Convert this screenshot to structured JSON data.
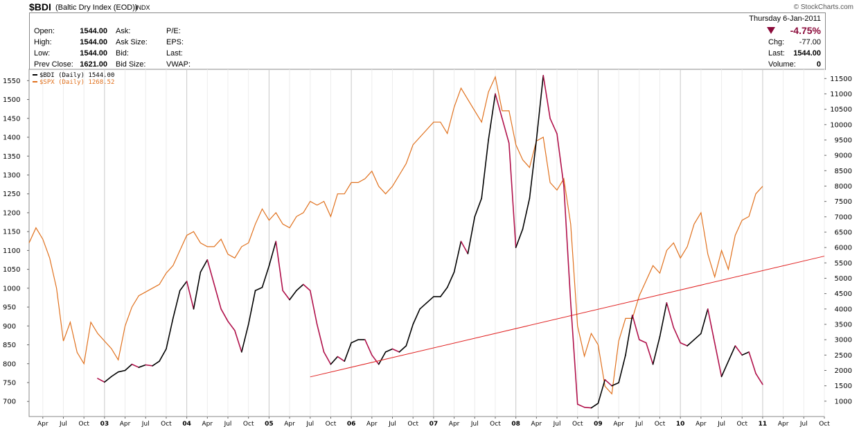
{
  "header": {
    "symbol": "$BDI",
    "name": "(Baltic Dry Index (EOD))",
    "exchange": "INDX",
    "watermark": "© StockCharts.com",
    "date": "Thursday  6-Jan-2011"
  },
  "stats": {
    "open_label": "Open:",
    "open_value": "1544.00",
    "high_label": "High:",
    "high_value": "1544.00",
    "low_label": "Low:",
    "low_value": "1544.00",
    "prev_close_label": "Prev Close:",
    "prev_close_value": "1621.00",
    "ask_label": "Ask:",
    "ask_size_label": "Ask Size:",
    "bid_label": "Bid:",
    "bid_size_label": "Bid Size:",
    "pe_label": "P/E:",
    "eps_label": "EPS:",
    "last_label_mid": "Last:",
    "vwap_label": "VWAP:",
    "change_pct": "-4.75%",
    "chg_label": "Chg:",
    "chg_value": "-77.00",
    "last_label": "Last:",
    "last_value": "1544.00",
    "volume_label": "Volume:",
    "volume_value": "0",
    "down_color": "#8b0a3a"
  },
  "chart_data": {
    "type": "line",
    "x_range": [
      "2002-02",
      "2011-10"
    ],
    "ylim_left": [
      660,
      1580
    ],
    "ylim_right": [
      500,
      11800
    ],
    "left_ticks": [
      700,
      750,
      800,
      850,
      900,
      950,
      1000,
      1050,
      1100,
      1150,
      1200,
      1250,
      1300,
      1350,
      1400,
      1450,
      1500,
      1550
    ],
    "right_ticks": [
      1000,
      1500,
      2000,
      2500,
      3000,
      3500,
      4000,
      4500,
      5000,
      5500,
      6000,
      6500,
      7000,
      7500,
      8000,
      8500,
      9000,
      9500,
      10000,
      10500,
      11000,
      11500
    ],
    "x_ticks": [
      {
        "label": "Apr",
        "year": false
      },
      {
        "label": "Jul",
        "year": false
      },
      {
        "label": "Oct",
        "year": false
      },
      {
        "label": "03",
        "year": true
      },
      {
        "label": "Apr",
        "year": false
      },
      {
        "label": "Jul",
        "year": false
      },
      {
        "label": "Oct",
        "year": false
      },
      {
        "label": "04",
        "year": true
      },
      {
        "label": "Apr",
        "year": false
      },
      {
        "label": "Jul",
        "year": false
      },
      {
        "label": "Oct",
        "year": false
      },
      {
        "label": "05",
        "year": true
      },
      {
        "label": "Apr",
        "year": false
      },
      {
        "label": "Jul",
        "year": false
      },
      {
        "label": "Oct",
        "year": false
      },
      {
        "label": "06",
        "year": true
      },
      {
        "label": "Apr",
        "year": false
      },
      {
        "label": "Jul",
        "year": false
      },
      {
        "label": "Oct",
        "year": false
      },
      {
        "label": "07",
        "year": true
      },
      {
        "label": "Apr",
        "year": false
      },
      {
        "label": "Jul",
        "year": false
      },
      {
        "label": "Oct",
        "year": false
      },
      {
        "label": "08",
        "year": true
      },
      {
        "label": "Apr",
        "year": false
      },
      {
        "label": "Jul",
        "year": false
      },
      {
        "label": "Oct",
        "year": false
      },
      {
        "label": "09",
        "year": true
      },
      {
        "label": "Apr",
        "year": false
      },
      {
        "label": "Jul",
        "year": false
      },
      {
        "label": "Oct",
        "year": false
      },
      {
        "label": "10",
        "year": true
      },
      {
        "label": "Apr",
        "year": false
      },
      {
        "label": "Jul",
        "year": false
      },
      {
        "label": "Oct",
        "year": false
      },
      {
        "label": "11",
        "year": true
      },
      {
        "label": "Apr",
        "year": false
      },
      {
        "label": "Jul",
        "year": false
      },
      {
        "label": "Oct",
        "year": false
      }
    ],
    "legend": [
      {
        "text": "$BDI (Daily) 1544.00",
        "color": "#000000"
      },
      {
        "text": "$SPX (Daily) 1268.52",
        "color": "#e0701c"
      }
    ],
    "series": [
      {
        "name": "$SPX (Daily)",
        "axis": "left",
        "color": "#e0701c",
        "points": [
          [
            "2002-02",
            1120
          ],
          [
            "2002-03",
            1160
          ],
          [
            "2002-04",
            1130
          ],
          [
            "2002-05",
            1080
          ],
          [
            "2002-06",
            1000
          ],
          [
            "2002-07",
            860
          ],
          [
            "2002-08",
            910
          ],
          [
            "2002-09",
            830
          ],
          [
            "2002-10",
            800
          ],
          [
            "2002-11",
            910
          ],
          [
            "2002-12",
            880
          ],
          [
            "2003-01",
            860
          ],
          [
            "2003-02",
            840
          ],
          [
            "2003-03",
            810
          ],
          [
            "2003-04",
            900
          ],
          [
            "2003-05",
            950
          ],
          [
            "2003-06",
            980
          ],
          [
            "2003-07",
            990
          ],
          [
            "2003-08",
            1000
          ],
          [
            "2003-09",
            1010
          ],
          [
            "2003-10",
            1040
          ],
          [
            "2003-11",
            1060
          ],
          [
            "2003-12",
            1100
          ],
          [
            "2004-01",
            1140
          ],
          [
            "2004-02",
            1150
          ],
          [
            "2004-03",
            1120
          ],
          [
            "2004-04",
            1110
          ],
          [
            "2004-05",
            1110
          ],
          [
            "2004-06",
            1130
          ],
          [
            "2004-07",
            1090
          ],
          [
            "2004-08",
            1080
          ],
          [
            "2004-09",
            1110
          ],
          [
            "2004-10",
            1120
          ],
          [
            "2004-11",
            1170
          ],
          [
            "2004-12",
            1210
          ],
          [
            "2005-01",
            1180
          ],
          [
            "2005-02",
            1200
          ],
          [
            "2005-03",
            1170
          ],
          [
            "2005-04",
            1160
          ],
          [
            "2005-05",
            1190
          ],
          [
            "2005-06",
            1200
          ],
          [
            "2005-07",
            1230
          ],
          [
            "2005-08",
            1220
          ],
          [
            "2005-09",
            1230
          ],
          [
            "2005-10",
            1190
          ],
          [
            "2005-11",
            1250
          ],
          [
            "2005-12",
            1250
          ],
          [
            "2006-01",
            1280
          ],
          [
            "2006-02",
            1280
          ],
          [
            "2006-03",
            1290
          ],
          [
            "2006-04",
            1310
          ],
          [
            "2006-05",
            1270
          ],
          [
            "2006-06",
            1250
          ],
          [
            "2006-07",
            1270
          ],
          [
            "2006-08",
            1300
          ],
          [
            "2006-09",
            1330
          ],
          [
            "2006-10",
            1380
          ],
          [
            "2006-11",
            1400
          ],
          [
            "2006-12",
            1420
          ],
          [
            "2007-01",
            1440
          ],
          [
            "2007-02",
            1440
          ],
          [
            "2007-03",
            1410
          ],
          [
            "2007-04",
            1480
          ],
          [
            "2007-05",
            1530
          ],
          [
            "2007-06",
            1500
          ],
          [
            "2007-07",
            1470
          ],
          [
            "2007-08",
            1440
          ],
          [
            "2007-09",
            1520
          ],
          [
            "2007-10",
            1560
          ],
          [
            "2007-11",
            1470
          ],
          [
            "2007-12",
            1470
          ],
          [
            "2008-01",
            1380
          ],
          [
            "2008-02",
            1340
          ],
          [
            "2008-03",
            1320
          ],
          [
            "2008-04",
            1390
          ],
          [
            "2008-05",
            1400
          ],
          [
            "2008-06",
            1280
          ],
          [
            "2008-07",
            1260
          ],
          [
            "2008-08",
            1290
          ],
          [
            "2008-09",
            1170
          ],
          [
            "2008-10",
            900
          ],
          [
            "2008-11",
            820
          ],
          [
            "2008-12",
            880
          ],
          [
            "2009-01",
            850
          ],
          [
            "2009-02",
            740
          ],
          [
            "2009-03",
            720
          ],
          [
            "2009-04",
            860
          ],
          [
            "2009-05",
            920
          ],
          [
            "2009-06",
            920
          ],
          [
            "2009-07",
            980
          ],
          [
            "2009-08",
            1020
          ],
          [
            "2009-09",
            1060
          ],
          [
            "2009-10",
            1040
          ],
          [
            "2009-11",
            1100
          ],
          [
            "2009-12",
            1120
          ],
          [
            "2010-01",
            1080
          ],
          [
            "2010-02",
            1110
          ],
          [
            "2010-03",
            1170
          ],
          [
            "2010-04",
            1200
          ],
          [
            "2010-05",
            1090
          ],
          [
            "2010-06",
            1030
          ],
          [
            "2010-07",
            1100
          ],
          [
            "2010-08",
            1050
          ],
          [
            "2010-09",
            1140
          ],
          [
            "2010-10",
            1180
          ],
          [
            "2010-11",
            1190
          ],
          [
            "2010-12",
            1250
          ],
          [
            "2011-01",
            1270
          ]
        ]
      },
      {
        "name": "$BDI (Daily)",
        "axis": "right",
        "color": "#000000",
        "down_color": "#b0104a",
        "points": [
          [
            "2002-12",
            1740
          ],
          [
            "2003-01",
            1620
          ],
          [
            "2003-02",
            1800
          ],
          [
            "2003-03",
            1950
          ],
          [
            "2003-04",
            2000
          ],
          [
            "2003-05",
            2200
          ],
          [
            "2003-06",
            2100
          ],
          [
            "2003-07",
            2180
          ],
          [
            "2003-08",
            2150
          ],
          [
            "2003-09",
            2300
          ],
          [
            "2003-10",
            2700
          ],
          [
            "2003-11",
            3700
          ],
          [
            "2003-12",
            4600
          ],
          [
            "2004-01",
            4900
          ],
          [
            "2004-02",
            4000
          ],
          [
            "2004-03",
            5200
          ],
          [
            "2004-04",
            5600
          ],
          [
            "2004-05",
            4800
          ],
          [
            "2004-06",
            4000
          ],
          [
            "2004-07",
            3600
          ],
          [
            "2004-08",
            3300
          ],
          [
            "2004-09",
            2600
          ],
          [
            "2004-10",
            3500
          ],
          [
            "2004-11",
            4600
          ],
          [
            "2004-12",
            4700
          ],
          [
            "2005-01",
            5400
          ],
          [
            "2005-02",
            6200
          ],
          [
            "2005-03",
            4600
          ],
          [
            "2005-04",
            4300
          ],
          [
            "2005-05",
            4600
          ],
          [
            "2005-06",
            4800
          ],
          [
            "2005-07",
            4600
          ],
          [
            "2005-08",
            3500
          ],
          [
            "2005-09",
            2600
          ],
          [
            "2005-10",
            2200
          ],
          [
            "2005-11",
            2450
          ],
          [
            "2005-12",
            2300
          ],
          [
            "2006-01",
            2900
          ],
          [
            "2006-02",
            3000
          ],
          [
            "2006-03",
            3000
          ],
          [
            "2006-04",
            2500
          ],
          [
            "2006-05",
            2200
          ],
          [
            "2006-06",
            2600
          ],
          [
            "2006-07",
            2700
          ],
          [
            "2006-08",
            2600
          ],
          [
            "2006-09",
            2800
          ],
          [
            "2006-10",
            3500
          ],
          [
            "2006-11",
            4000
          ],
          [
            "2006-12",
            4200
          ],
          [
            "2007-01",
            4400
          ],
          [
            "2007-02",
            4400
          ],
          [
            "2007-03",
            4700
          ],
          [
            "2007-04",
            5200
          ],
          [
            "2007-05",
            6200
          ],
          [
            "2007-06",
            5800
          ],
          [
            "2007-07",
            7000
          ],
          [
            "2007-08",
            7600
          ],
          [
            "2007-09",
            9500
          ],
          [
            "2007-10",
            11000
          ],
          [
            "2007-11",
            10200
          ],
          [
            "2007-12",
            9400
          ],
          [
            "2008-01",
            6000
          ],
          [
            "2008-02",
            6600
          ],
          [
            "2008-03",
            7600
          ],
          [
            "2008-04",
            9500
          ],
          [
            "2008-05",
            11600
          ],
          [
            "2008-06",
            10200
          ],
          [
            "2008-07",
            9700
          ],
          [
            "2008-08",
            8000
          ],
          [
            "2008-09",
            4200
          ],
          [
            "2008-10",
            900
          ],
          [
            "2008-11",
            800
          ],
          [
            "2008-12",
            780
          ],
          [
            "2009-01",
            930
          ],
          [
            "2009-02",
            1700
          ],
          [
            "2009-03",
            1500
          ],
          [
            "2009-04",
            1600
          ],
          [
            "2009-05",
            2500
          ],
          [
            "2009-06",
            3800
          ],
          [
            "2009-07",
            3000
          ],
          [
            "2009-08",
            2900
          ],
          [
            "2009-09",
            2200
          ],
          [
            "2009-10",
            3100
          ],
          [
            "2009-11",
            4200
          ],
          [
            "2009-12",
            3400
          ],
          [
            "2010-01",
            2900
          ],
          [
            "2010-02",
            2800
          ],
          [
            "2010-03",
            3000
          ],
          [
            "2010-04",
            3200
          ],
          [
            "2010-05",
            4000
          ],
          [
            "2010-06",
            2900
          ],
          [
            "2010-07",
            1800
          ],
          [
            "2010-08",
            2300
          ],
          [
            "2010-09",
            2800
          ],
          [
            "2010-10",
            2500
          ],
          [
            "2010-11",
            2600
          ],
          [
            "2010-12",
            1900
          ],
          [
            "2011-01",
            1544
          ]
        ]
      }
    ],
    "trendlines": [
      {
        "color": "#e02020",
        "axis": "left",
        "from": [
          "2005-07",
          765
        ],
        "to": [
          "2011-10",
          1085
        ]
      }
    ]
  }
}
